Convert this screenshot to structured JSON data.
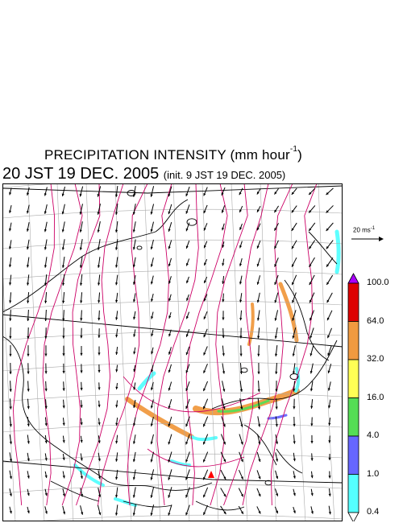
{
  "title": {
    "line1": "PRECIPITATION INTENSITY (mm hour",
    "line1_sup": "-1",
    "line1_end": ")",
    "line2_main": "20 JST 19 DEC. 2005",
    "line2_init": "(init. 9 JST 19 DEC. 2005)"
  },
  "wind_key": {
    "label": "20 ms",
    "label_sup": "-1"
  },
  "legend": {
    "levels": [
      "100.0",
      "64.0",
      "32.0",
      "16.0",
      "4.0",
      "1.0",
      "0.4"
    ],
    "colors": [
      "#dd0000",
      "#f09a40",
      "#ffff55",
      "#55dd55",
      "#6666ff",
      "#55ffff"
    ],
    "top_color": "#aa00ff",
    "bottom_color": "#ffffff"
  },
  "map_colors": {
    "coast": "#000000",
    "grid": "#aaaaaa",
    "isobar": "#cc0066",
    "marker": "#ff0000"
  }
}
